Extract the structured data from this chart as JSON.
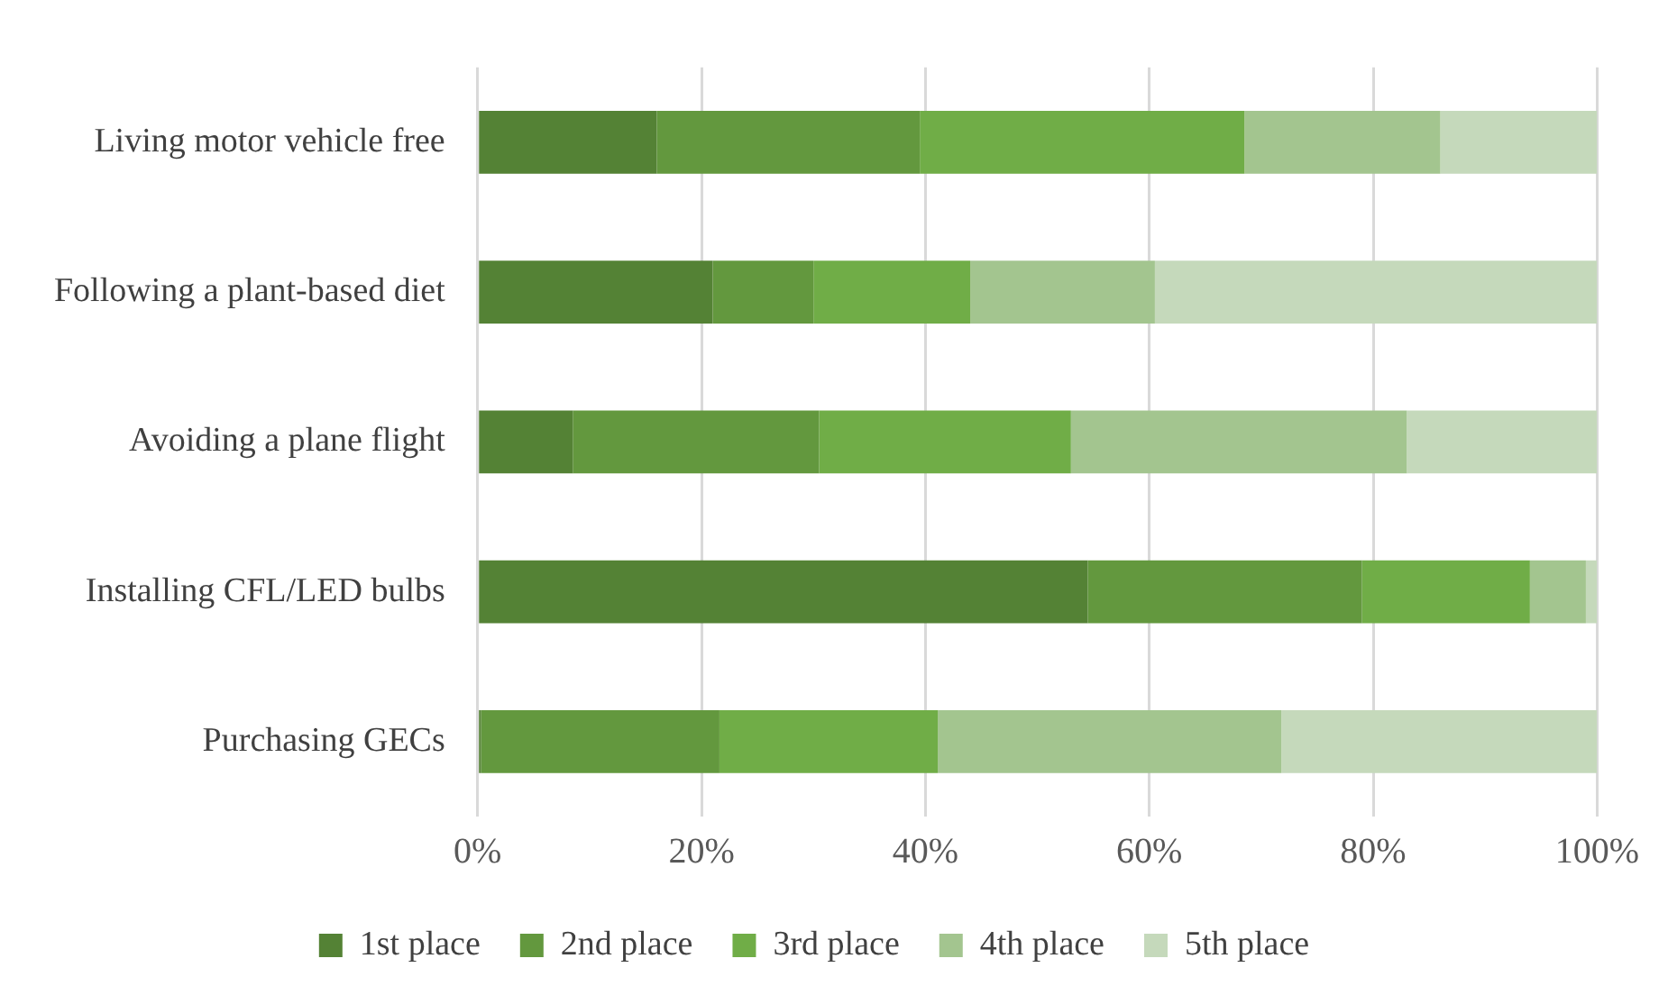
{
  "chart_data": {
    "type": "bar",
    "orientation": "horizontal",
    "stacked": true,
    "categories": [
      "Living motor vehicle free",
      "Following a plant-based diet",
      "Avoiding a plane flight",
      "Installing CFL/LED bulbs",
      "Purchasing GECs"
    ],
    "series": [
      {
        "name": "1st place",
        "color": "#548235",
        "values": [
          16,
          21,
          8.5,
          54.5,
          0.3
        ]
      },
      {
        "name": "2nd place",
        "color": "#63983e",
        "values": [
          23.5,
          9,
          22,
          24.5,
          21.3
        ]
      },
      {
        "name": "3rd place",
        "color": "#70ad47",
        "values": [
          29,
          14,
          22.5,
          15,
          19.5
        ]
      },
      {
        "name": "4th place",
        "color": "#a3c58f",
        "values": [
          17.5,
          16.5,
          30,
          5,
          30.7
        ]
      },
      {
        "name": "5th place",
        "color": "#c5d9bb",
        "values": [
          14,
          39.5,
          17,
          1,
          28.2
        ]
      }
    ],
    "xlim": [
      0,
      100
    ],
    "xticks": [
      {
        "value": 0,
        "label": "0%"
      },
      {
        "value": 20,
        "label": "20%"
      },
      {
        "value": 40,
        "label": "40%"
      },
      {
        "value": 60,
        "label": "60%"
      },
      {
        "value": 80,
        "label": "80%"
      },
      {
        "value": 100,
        "label": "100%"
      }
    ],
    "grid": "x",
    "legend": "bottom"
  }
}
